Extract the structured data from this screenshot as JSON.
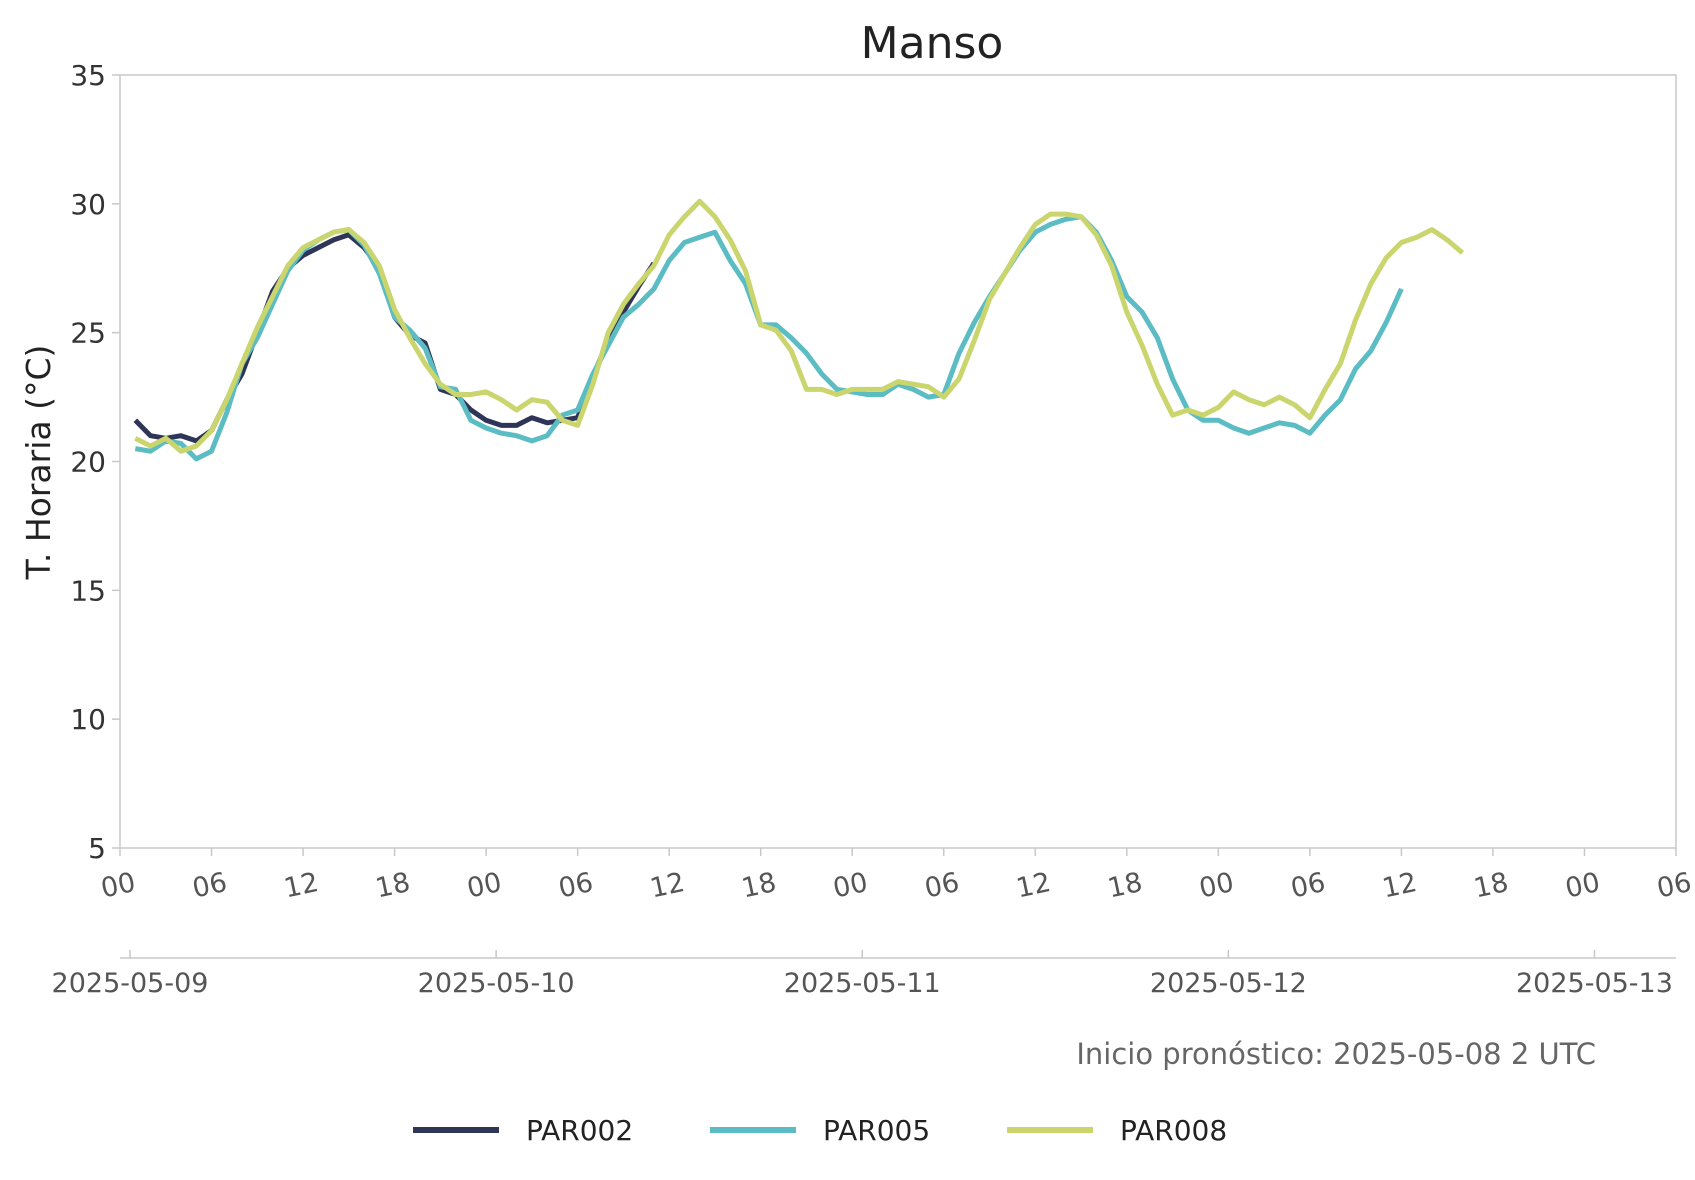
{
  "chart_data": {
    "type": "line",
    "title": "Manso",
    "ylabel": "T. Horaria (°C)",
    "ylim": [
      5,
      35
    ],
    "yticks": [
      5,
      10,
      15,
      20,
      25,
      30,
      35
    ],
    "xlim_hours": [
      0,
      102
    ],
    "hour_tick_labels": [
      "00",
      "06",
      "12",
      "18",
      "00",
      "06",
      "12",
      "18",
      "00",
      "06",
      "12",
      "18",
      "00",
      "06",
      "12",
      "18",
      "00",
      "06"
    ],
    "date_tick_labels": [
      "2025-05-09",
      "2025-05-10",
      "2025-05-11",
      "2025-05-12",
      "2025-05-13"
    ],
    "note": "Inicio pronóstico: 2025-05-08 2 UTC",
    "grid": false,
    "legend_position": "bottom",
    "x_unit": "hours since 2025-05-09 00 UTC",
    "series": [
      {
        "name": "PAR002",
        "color": "#2e3557",
        "x": [
          1,
          2,
          3,
          4,
          5,
          6,
          7,
          8,
          9,
          10,
          11,
          12,
          13,
          14,
          15,
          16,
          17,
          18,
          19,
          20,
          21,
          22,
          23,
          24,
          25,
          26,
          27,
          28,
          29,
          30,
          31,
          32,
          33,
          34,
          35
        ],
        "y": [
          21.6,
          21.0,
          20.9,
          21.0,
          20.8,
          21.2,
          22.4,
          23.4,
          25.0,
          26.6,
          27.5,
          28.0,
          28.3,
          28.6,
          28.8,
          28.3,
          27.5,
          25.6,
          24.9,
          24.6,
          22.8,
          22.6,
          22.0,
          21.6,
          21.4,
          21.4,
          21.7,
          21.5,
          21.6,
          21.7,
          23.3,
          24.7,
          25.8,
          26.8,
          27.7
        ]
      },
      {
        "name": "PAR005",
        "color": "#5bbcc4",
        "x": [
          1,
          2,
          3,
          4,
          5,
          6,
          7,
          8,
          9,
          10,
          11,
          12,
          13,
          14,
          15,
          16,
          17,
          18,
          19,
          20,
          21,
          22,
          23,
          24,
          25,
          26,
          27,
          28,
          29,
          30,
          31,
          32,
          33,
          34,
          35,
          36,
          37,
          38,
          39,
          40,
          41,
          42,
          43,
          44,
          45,
          46,
          47,
          48,
          49,
          50,
          51,
          52,
          53,
          54,
          55,
          56,
          57,
          58,
          59,
          60,
          61,
          62,
          63,
          64,
          65,
          66,
          67,
          68,
          69,
          70,
          71,
          72,
          73,
          74,
          75,
          76,
          77,
          78,
          79,
          80,
          81,
          82,
          83,
          84
        ],
        "y": [
          20.5,
          20.4,
          20.8,
          20.7,
          20.1,
          20.4,
          21.9,
          23.8,
          24.8,
          26.1,
          27.4,
          28.2,
          28.6,
          28.9,
          29.0,
          28.4,
          27.3,
          25.6,
          25.1,
          24.4,
          22.9,
          22.8,
          21.6,
          21.3,
          21.1,
          21.0,
          20.8,
          21.0,
          21.8,
          22.0,
          23.4,
          24.5,
          25.6,
          26.1,
          26.7,
          27.8,
          28.5,
          28.7,
          28.9,
          27.8,
          26.9,
          25.3,
          25.3,
          24.8,
          24.2,
          23.4,
          22.8,
          22.7,
          22.6,
          22.6,
          23.0,
          22.8,
          22.5,
          22.6,
          24.2,
          25.4,
          26.4,
          27.3,
          28.2,
          28.9,
          29.2,
          29.4,
          29.5,
          28.9,
          27.8,
          26.4,
          25.8,
          24.8,
          23.2,
          22.0,
          21.6,
          21.6,
          21.3,
          21.1,
          21.3,
          21.5,
          21.4,
          21.1,
          21.8,
          22.4,
          23.6,
          24.3,
          25.4,
          26.7
        ]
      },
      {
        "name": "PAR008",
        "color": "#cad56e",
        "x": [
          1,
          2,
          3,
          4,
          5,
          6,
          7,
          8,
          9,
          10,
          11,
          12,
          13,
          14,
          15,
          16,
          17,
          18,
          19,
          20,
          21,
          22,
          23,
          24,
          25,
          26,
          27,
          28,
          29,
          30,
          31,
          32,
          33,
          34,
          35,
          36,
          37,
          38,
          39,
          40,
          41,
          42,
          43,
          44,
          45,
          46,
          47,
          48,
          49,
          50,
          51,
          52,
          53,
          54,
          55,
          56,
          57,
          58,
          59,
          60,
          61,
          62,
          63,
          64,
          65,
          66,
          67,
          68,
          69,
          70,
          71,
          72,
          73,
          74,
          75,
          76,
          77,
          78,
          79,
          80,
          81,
          82,
          83,
          84,
          85,
          86,
          87,
          88
        ],
        "y": [
          20.9,
          20.6,
          20.9,
          20.4,
          20.6,
          21.2,
          22.4,
          23.8,
          25.2,
          26.4,
          27.6,
          28.3,
          28.6,
          28.9,
          29.0,
          28.5,
          27.6,
          25.9,
          24.8,
          23.8,
          23.0,
          22.6,
          22.6,
          22.7,
          22.4,
          22.0,
          22.4,
          22.3,
          21.6,
          21.4,
          23.0,
          25.0,
          26.1,
          26.9,
          27.6,
          28.8,
          29.5,
          30.1,
          29.5,
          28.6,
          27.4,
          25.3,
          25.1,
          24.3,
          22.8,
          22.8,
          22.6,
          22.8,
          22.8,
          22.8,
          23.1,
          23.0,
          22.9,
          22.5,
          23.2,
          24.7,
          26.3,
          27.3,
          28.3,
          29.2,
          29.6,
          29.6,
          29.5,
          28.8,
          27.6,
          25.8,
          24.5,
          23.0,
          21.8,
          22.0,
          21.8,
          22.1,
          22.7,
          22.4,
          22.2,
          22.5,
          22.2,
          21.7,
          22.8,
          23.8,
          25.5,
          26.9,
          27.9,
          28.5,
          28.7,
          29.0,
          28.6,
          28.1
        ]
      }
    ]
  }
}
